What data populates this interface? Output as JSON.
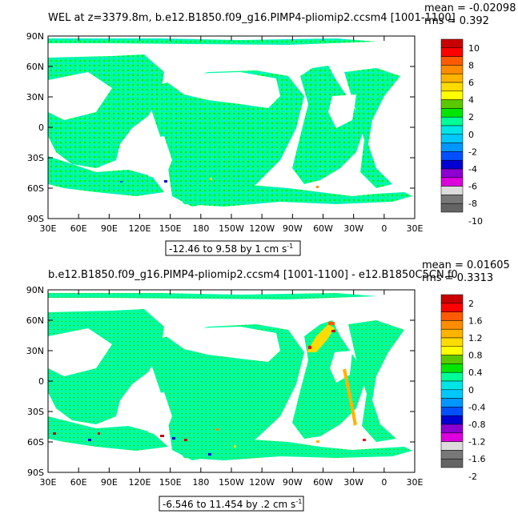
{
  "panels": [
    {
      "title": "WEL at z=3379.8m, b.e12.B1850.f09_g16.PIMP4-pliomip2.ccsm4 [1001-1100]",
      "mean_label": "mean = -0.02098",
      "rms_label": "rms = 0.392",
      "range_label": "-12.46 to 9.58 by 1 cm s",
      "range_sup": "-1",
      "colorbar": {
        "labels": [
          "10",
          "8",
          "6",
          "4",
          "2",
          "0",
          "-2",
          "-4",
          "-6",
          "-8",
          "-10"
        ],
        "colors": [
          "#c80000",
          "#ff0000",
          "#ff5a00",
          "#ff8c00",
          "#ffb400",
          "#ffdc00",
          "#ffff00",
          "#5ac800",
          "#00e600",
          "#00ff96",
          "#00e6e6",
          "#00c8ff",
          "#0096ff",
          "#0050ff",
          "#0000d2",
          "#8c00d2",
          "#dc00dc",
          "#dcdcdc",
          "#787878",
          "#646464"
        ]
      }
    },
    {
      "title": "b.e12.B1850.f09_g16.PIMP4-pliomip2.ccsm4 [1001-1100] - e12.B1850C5CN.f0",
      "mean_label": "mean = 0.01605",
      "rms_label": "rms = 0.3313",
      "range_label": "-6.546 to 11.454 by .2 cm s",
      "range_sup": "-1",
      "colorbar": {
        "labels": [
          "2",
          "1.6",
          "1.2",
          "0.8",
          "0.4",
          "0",
          "-0.4",
          "-0.8",
          "-1.2",
          "-1.6",
          "-2"
        ],
        "colors": [
          "#c80000",
          "#ff0000",
          "#ff5a00",
          "#ff8c00",
          "#ffb400",
          "#ffdc00",
          "#ffff00",
          "#5ac800",
          "#00e600",
          "#00ff96",
          "#00e6e6",
          "#00c8ff",
          "#0096ff",
          "#0050ff",
          "#0000d2",
          "#8c00d2",
          "#dc00dc",
          "#dcdcdc",
          "#787878",
          "#646464"
        ]
      }
    }
  ],
  "axes": {
    "lat_labels": [
      "90N",
      "60N",
      "30N",
      "0",
      "30S",
      "60S",
      "90S"
    ],
    "lon_labels": [
      "30E",
      "60E",
      "90E",
      "120E",
      "150E",
      "180",
      "150W",
      "120W",
      "90W",
      "60W",
      "30W",
      "0",
      "30E"
    ]
  },
  "chart_data": [
    {
      "type": "heatmap",
      "title": "WEL at z=3379.8m, b.e12.B1850.f09_g16.PIMP4-pliomip2.ccsm4 [1001-1100]",
      "x_ticks": [
        "30E",
        "60E",
        "90E",
        "120E",
        "150E",
        "180",
        "150W",
        "120W",
        "90W",
        "60W",
        "30W",
        "0",
        "30E"
      ],
      "y_ticks": [
        "90N",
        "60N",
        "30N",
        "0",
        "30S",
        "60S",
        "90S"
      ],
      "stats": {
        "mean": -0.02098,
        "rms": 0.392
      },
      "data_range": {
        "min": -12.46,
        "max": 9.58,
        "interval": 1,
        "units": "cm s-1"
      },
      "colorbar_levels": [
        -10,
        -8,
        -6,
        -4,
        -2,
        0,
        2,
        4,
        6,
        8,
        10
      ]
    },
    {
      "type": "heatmap",
      "title": "b.e12.B1850.f09_g16.PIMP4-pliomip2.ccsm4 [1001-1100] - e12.B1850C5CN.f0",
      "x_ticks": [
        "30E",
        "60E",
        "90E",
        "120E",
        "150E",
        "180",
        "150W",
        "120W",
        "90W",
        "60W",
        "30W",
        "0",
        "30E"
      ],
      "y_ticks": [
        "90N",
        "60N",
        "30N",
        "0",
        "30S",
        "60S",
        "90S"
      ],
      "stats": {
        "mean": 0.01605,
        "rms": 0.3313
      },
      "data_range": {
        "min": -6.546,
        "max": 11.454,
        "interval": 0.2,
        "units": "cm s-1"
      },
      "colorbar_levels": [
        -2,
        -1.6,
        -1.2,
        -0.8,
        -0.4,
        0,
        0.4,
        0.8,
        1.2,
        1.6,
        2
      ]
    }
  ]
}
